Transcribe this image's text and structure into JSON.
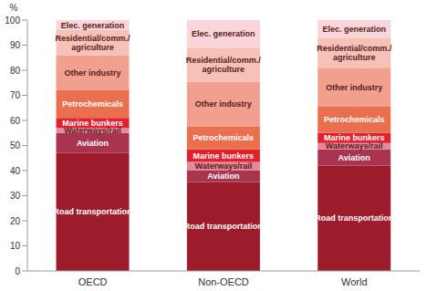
{
  "chart_data": {
    "type": "bar",
    "stacked": true,
    "ylabel": "%",
    "categories": [
      "OECD",
      "Non-OECD",
      "World"
    ],
    "ylim": [
      0,
      100
    ],
    "yticks": [
      0,
      10,
      20,
      30,
      40,
      50,
      60,
      70,
      80,
      90,
      100
    ],
    "grid": false,
    "series": [
      {
        "name": "Road transportation",
        "color": "#9c1c2c",
        "values": [
          47,
          35.5,
          42
        ]
      },
      {
        "name": "Aviation",
        "color": "#a8344f",
        "values": [
          8,
          4.5,
          6.5
        ]
      },
      {
        "name": "Waterways/rail",
        "color": "#e3899a",
        "values": [
          2,
          3.5,
          2.5
        ]
      },
      {
        "name": "Marine bunkers",
        "color": "#e2202e",
        "values": [
          4,
          5,
          4
        ]
      },
      {
        "name": "Petrochemicals",
        "color": "#e96f4f",
        "values": [
          11,
          9,
          10.5
        ]
      },
      {
        "name": "Other industry",
        "color": "#f1a08f",
        "values": [
          14,
          18,
          15.5
        ]
      },
      {
        "name": "Residential/comm./agriculture",
        "color": "#f6c2b7",
        "values": [
          10,
          13.5,
          12
        ]
      },
      {
        "name": "Elec. generation",
        "color": "#fad6da",
        "values": [
          4,
          11,
          7
        ]
      }
    ]
  }
}
